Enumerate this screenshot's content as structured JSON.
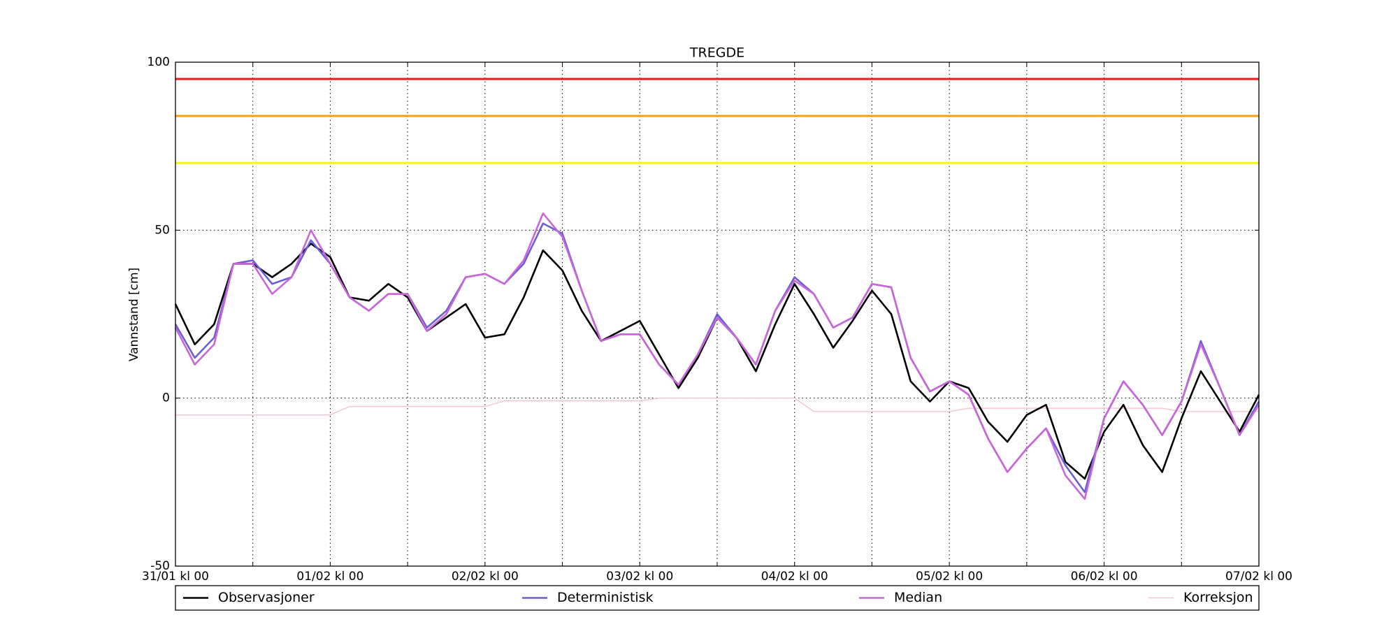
{
  "chart_data": {
    "type": "line",
    "title": "TREGDE",
    "y_label": "Vannstand [cm]",
    "x": [
      0,
      3,
      6,
      9,
      12,
      15,
      18,
      21,
      24,
      27,
      30,
      33,
      36,
      39,
      42,
      45,
      48,
      51,
      54,
      57,
      60,
      63,
      66,
      69,
      72,
      75,
      78,
      81,
      84,
      87,
      90,
      93,
      96,
      99,
      102,
      105,
      108,
      111,
      114,
      117,
      120,
      123,
      126,
      129,
      132,
      135,
      138,
      141,
      144,
      147,
      150,
      153,
      156,
      159,
      162,
      165,
      168
    ],
    "series": [
      {
        "name": "Observasjoner",
        "color": "#000000",
        "values": [
          28,
          16,
          22,
          40,
          40,
          36,
          40,
          46,
          42,
          30,
          29,
          34,
          30,
          20,
          24,
          28,
          18,
          19,
          30,
          44,
          38,
          26,
          17,
          20,
          23,
          13,
          3,
          12,
          24,
          18,
          8,
          22,
          34,
          25,
          15,
          23,
          32,
          25,
          5,
          -1,
          5,
          3,
          -7,
          -13,
          -5,
          -2,
          -19,
          -24,
          -10,
          -2,
          -14,
          -22,
          -6,
          8,
          -1,
          -10,
          1
        ]
      },
      {
        "name": "Deterministisk",
        "color": "#6a5fd6",
        "values": [
          22,
          12,
          18,
          40,
          41,
          34,
          36,
          47,
          40,
          30,
          26,
          31,
          31,
          21,
          26,
          36,
          37,
          34,
          40,
          52,
          49,
          32,
          17,
          19,
          19,
          10,
          4,
          13,
          25,
          18,
          10,
          26,
          36,
          31,
          21,
          24,
          34,
          33,
          12,
          2,
          5,
          1,
          -12,
          -22,
          -15,
          -9,
          -20,
          -28,
          -6,
          5,
          -2,
          -11,
          -1,
          17,
          3,
          -11,
          -1
        ]
      },
      {
        "name": "Median",
        "color": "#c967d8",
        "values": [
          21,
          10,
          16,
          40,
          40,
          31,
          36,
          50,
          40,
          30,
          26,
          31,
          31,
          20,
          25,
          36,
          37,
          34,
          41,
          55,
          48,
          32,
          17,
          19,
          19,
          10,
          4,
          13,
          24,
          18,
          10,
          26,
          35,
          31,
          21,
          24,
          34,
          33,
          12,
          2,
          5,
          1,
          -12,
          -22,
          -15,
          -9,
          -23,
          -30,
          -6,
          5,
          -2,
          -11,
          -1,
          16,
          3,
          -11,
          -2
        ]
      },
      {
        "name": "Korreksjon",
        "color": "#f7c6d0",
        "values": [
          -5,
          -5,
          -5,
          -5,
          -5,
          -5,
          -5,
          -5,
          -5,
          -2.5,
          -2.5,
          -2.5,
          -2.5,
          -2.5,
          -2.5,
          -2.5,
          -2.5,
          -0.8,
          -0.8,
          -0.8,
          -0.8,
          -0.8,
          -0.8,
          -0.8,
          -0.8,
          0,
          0,
          0,
          0,
          0,
          0,
          0,
          0,
          -4,
          -4,
          -4,
          -4,
          -4,
          -4,
          -4,
          -4,
          -3,
          -3,
          -3,
          -3,
          -3,
          -3,
          -3,
          -3,
          -3,
          -3,
          -3,
          -4,
          -4,
          -4,
          -4,
          -4
        ]
      }
    ],
    "thresholds": [
      {
        "value": 95,
        "color": "#e8191c"
      },
      {
        "value": 84,
        "color": "#ff9f00"
      },
      {
        "value": 70,
        "color": "#f5f51a"
      }
    ],
    "xlim": [
      0,
      168
    ],
    "xticks": [
      {
        "value": 0,
        "label": "31/01 kl 00"
      },
      {
        "value": 24,
        "label": "01/02 kl 00"
      },
      {
        "value": 48,
        "label": "02/02 kl 00"
      },
      {
        "value": 72,
        "label": "03/02 kl 00"
      },
      {
        "value": 96,
        "label": "04/02 kl 00"
      },
      {
        "value": 120,
        "label": "05/02 kl 00"
      },
      {
        "value": 144,
        "label": "06/02 kl 00"
      },
      {
        "value": 168,
        "label": "07/02 kl 00"
      }
    ],
    "xminorticks": [
      12,
      36,
      60,
      84,
      108,
      132,
      156
    ],
    "ylim": [
      -50,
      100
    ],
    "yticks": [
      -50,
      0,
      50,
      100
    ],
    "grid": true,
    "legend": "bottom"
  }
}
